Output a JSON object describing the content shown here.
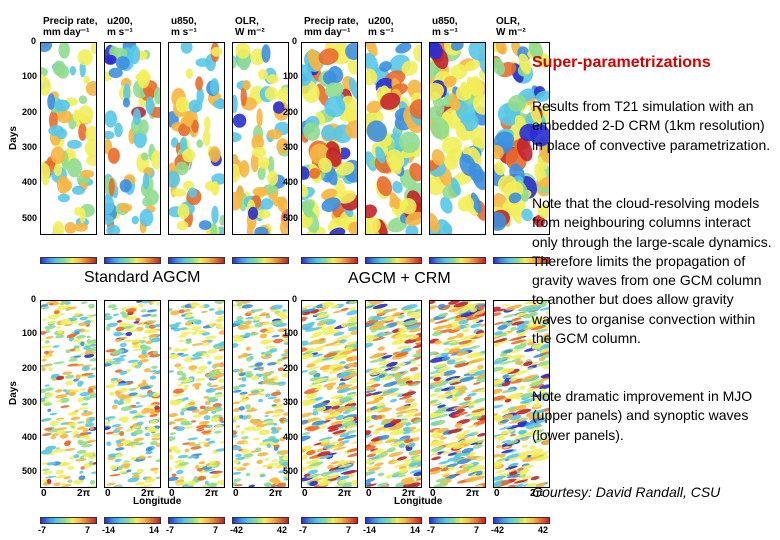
{
  "text_panel": {
    "heading": "Super-parametrizations",
    "paragraph1": "Results from T21 simulation with an embedded 2-D CRM (1km resolution) in place of convective parametrization.",
    "paragraph2": "Note that the cloud-resolving models from neighbouring columns interact only through the large-scale dynamics. Therefore limits the propagation of gravity waves from one GCM column to another but does allow gravity waves to organise convection within the GCM column.",
    "paragraph3": "Note dramatic improvement in MJO (upper panels) and synoptic waves (lower panels).",
    "credit": "Courtesy: David Randall, CSU",
    "heading_color": "#d60000"
  },
  "figure": {
    "left_label": "Standard AGCM",
    "right_label": "AGCM + CRM",
    "days_label": "Days",
    "longitude_label": "Longitude",
    "panel_titles": [
      "Precip rate,\nmm day⁻¹",
      "u200,\nm s⁻¹",
      "u850,\nm s⁻¹",
      "OLR,\nW m⁻²"
    ],
    "day_ticks": [
      "0",
      "100",
      "200",
      "300",
      "400",
      "500"
    ],
    "lon_ticks": [
      "0",
      "2π"
    ],
    "colorbar_ticks": [
      [
        "-7",
        "7"
      ],
      [
        "-14",
        "14"
      ],
      [
        "-7",
        "7"
      ],
      [
        "-42",
        "42"
      ]
    ],
    "colormap": [
      "#2a2fd0",
      "#3c8fe0",
      "#56c8e8",
      "#8fdc8f",
      "#f2ee5a",
      "#f6b640",
      "#ea6a2a",
      "#c4222a"
    ]
  }
}
